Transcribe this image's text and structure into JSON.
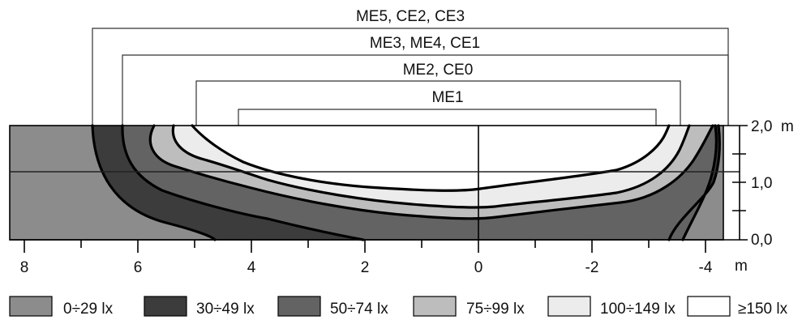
{
  "class_ranges": [
    {
      "label": "ME5, CE2, CE3",
      "from_m": 6.8,
      "to_m": -4.4
    },
    {
      "label": "ME3, ME4, CE1",
      "from_m": 6.3,
      "to_m": -4.4
    },
    {
      "label": "ME2, CE0",
      "from_m": 5.0,
      "to_m": -3.6
    },
    {
      "label": "ME1",
      "from_m": 4.2,
      "to_m": -3.2
    }
  ],
  "x_axis": {
    "unit": "m",
    "ticks": [
      "8",
      "6",
      "4",
      "2",
      "0",
      "-2",
      "-4"
    ],
    "tick_values": [
      8,
      6,
      4,
      2,
      0,
      -2,
      -4
    ],
    "range": [
      8.3,
      -4.4
    ]
  },
  "y_axis": {
    "unit": "m",
    "ticks": [
      "2,0",
      "1,0",
      "0,0"
    ],
    "tick_values": [
      2.0,
      1.0,
      0.0
    ],
    "minor_ticks": [
      1.5,
      0.5
    ],
    "range": [
      0,
      2.0
    ],
    "reference_line_m": 1.2
  },
  "legend": [
    {
      "label": "0÷29 lx",
      "color": "#8c8c8c"
    },
    {
      "label": "30÷49 lx",
      "color": "#3c3c3c"
    },
    {
      "label": "50÷74 lx",
      "color": "#636363"
    },
    {
      "label": "75÷99 lx",
      "color": "#bdbdbd"
    },
    {
      "label": "100÷149 lx",
      "color": "#ececec"
    },
    {
      "label": "≥150 lx",
      "color": "#ffffff"
    }
  ]
}
